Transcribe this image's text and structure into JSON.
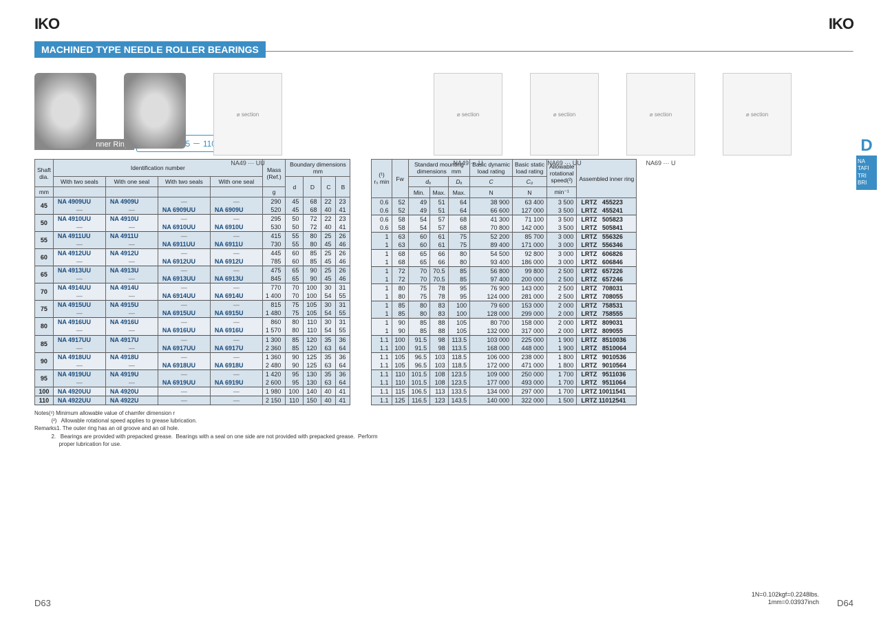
{
  "brand": "IKO",
  "title": "MACHINED TYPE NEEDLE ROLLER BEARINGS",
  "subtitle": "With Seal, With Inner Ring",
  "shaft_range": "Shaft dia. 45 － 110mm",
  "diagram_captions": [
    "NA49 ··· UU",
    "NA49 ··· U",
    "NA69 ··· UU",
    "NA69 ··· U"
  ],
  "side_tab": {
    "letter": "D",
    "items": "NA\nTAFI\nTRI\nBRI"
  },
  "left_head": {
    "shaft": "Shaft\ndia.",
    "ident": "Identification number",
    "sub": [
      "With two seals",
      "With one seal",
      "With two seals",
      "With one seal"
    ],
    "mass": "Mass\n(Ref.)",
    "bdim": "Boundary dimensions\nmm",
    "mm": "mm",
    "g": "g",
    "dims": [
      "d",
      "D",
      "C",
      "B"
    ]
  },
  "right_head": {
    "rsmin": "(¹)\nrₛ min",
    "fw": "Fw",
    "std": "Standard mounting\ndimensions   mm",
    "da": "dₐ",
    "Da": "Dₐ",
    "min": "Min.",
    "max": "Max.",
    "max2": "Max.",
    "bdr": "Basic dynamic\nload rating",
    "bsr": "Basic static\nload rating",
    "C": "C",
    "C0": "C₀",
    "N": "N",
    "allow": "Allowable\nrotational\nspeed(²)",
    "min1": "min⁻¹",
    "ring": "Assembled inner ring"
  },
  "rows": [
    {
      "shaft": "45",
      "a": [
        "NA 4909UU",
        "NA 4909U",
        "—",
        "—"
      ],
      "b": [
        "—",
        "—",
        "NA 6909UU",
        "NA 6909U"
      ],
      "la": [
        "290",
        "45",
        "68",
        "22",
        "23"
      ],
      "lb": [
        "520",
        "45",
        "68",
        "40",
        "41"
      ],
      "ra": [
        "0.6",
        "52",
        "49",
        "51",
        "64",
        "38 900",
        "63 400",
        "3 500",
        "LRTZ",
        "455223"
      ],
      "rb": [
        "0.6",
        "52",
        "49",
        "51",
        "64",
        "66 600",
        "127 000",
        "3 500",
        "LRTZ",
        "455241"
      ]
    },
    {
      "shaft": "50",
      "a": [
        "NA 4910UU",
        "NA 4910U",
        "—",
        "—"
      ],
      "b": [
        "—",
        "—",
        "NA 6910UU",
        "NA 6910U"
      ],
      "la": [
        "295",
        "50",
        "72",
        "22",
        "23"
      ],
      "lb": [
        "530",
        "50",
        "72",
        "40",
        "41"
      ],
      "ra": [
        "0.6",
        "58",
        "54",
        "57",
        "68",
        "41 300",
        "71 100",
        "3 500",
        "LRTZ",
        "505823"
      ],
      "rb": [
        "0.6",
        "58",
        "54",
        "57",
        "68",
        "70 800",
        "142 000",
        "3 500",
        "LRTZ",
        "505841"
      ]
    },
    {
      "shaft": "55",
      "a": [
        "NA 4911UU",
        "NA 4911U",
        "—",
        "—"
      ],
      "b": [
        "—",
        "—",
        "NA 6911UU",
        "NA 6911U"
      ],
      "la": [
        "415",
        "55",
        "80",
        "25",
        "26"
      ],
      "lb": [
        "730",
        "55",
        "80",
        "45",
        "46"
      ],
      "ra": [
        "1",
        "63",
        "60",
        "61",
        "75",
        "52 200",
        "85 700",
        "3 000",
        "LRTZ",
        "556326"
      ],
      "rb": [
        "1",
        "63",
        "60",
        "61",
        "75",
        "89 400",
        "171 000",
        "3 000",
        "LRTZ",
        "556346"
      ]
    },
    {
      "shaft": "60",
      "a": [
        "NA 4912UU",
        "NA 4912U",
        "—",
        "—"
      ],
      "b": [
        "—",
        "—",
        "NA 6912UU",
        "NA 6912U"
      ],
      "la": [
        "445",
        "60",
        "85",
        "25",
        "26"
      ],
      "lb": [
        "785",
        "60",
        "85",
        "45",
        "46"
      ],
      "ra": [
        "1",
        "68",
        "65",
        "66",
        "80",
        "54 500",
        "92 800",
        "3 000",
        "LRTZ",
        "606826"
      ],
      "rb": [
        "1",
        "68",
        "65",
        "66",
        "80",
        "93 400",
        "186 000",
        "3 000",
        "LRTZ",
        "606846"
      ]
    },
    {
      "shaft": "65",
      "a": [
        "NA 4913UU",
        "NA 4913U",
        "—",
        "—"
      ],
      "b": [
        "—",
        "—",
        "NA 6913UU",
        "NA 6913U"
      ],
      "la": [
        "475",
        "65",
        "90",
        "25",
        "26"
      ],
      "lb": [
        "845",
        "65",
        "90",
        "45",
        "46"
      ],
      "ra": [
        "1",
        "72",
        "70",
        "70.5",
        "85",
        "56 800",
        "99 800",
        "2 500",
        "LRTZ",
        "657226"
      ],
      "rb": [
        "1",
        "72",
        "70",
        "70.5",
        "85",
        "97 400",
        "200 000",
        "2 500",
        "LRTZ",
        "657246"
      ]
    },
    {
      "shaft": "70",
      "a": [
        "NA 4914UU",
        "NA 4914U",
        "—",
        "—"
      ],
      "b": [
        "—",
        "—",
        "NA 6914UU",
        "NA 6914U"
      ],
      "la": [
        "770",
        "70",
        "100",
        "30",
        "31"
      ],
      "lb": [
        "1 400",
        "70",
        "100",
        "54",
        "55"
      ],
      "ra": [
        "1",
        "80",
        "75",
        "78",
        "95",
        "76 900",
        "143 000",
        "2 500",
        "LRTZ",
        "708031"
      ],
      "rb": [
        "1",
        "80",
        "75",
        "78",
        "95",
        "124 000",
        "281 000",
        "2 500",
        "LRTZ",
        "708055"
      ]
    },
    {
      "shaft": "75",
      "a": [
        "NA 4915UU",
        "NA 4915U",
        "—",
        "—"
      ],
      "b": [
        "—",
        "—",
        "NA 6915UU",
        "NA 6915U"
      ],
      "la": [
        "815",
        "75",
        "105",
        "30",
        "31"
      ],
      "lb": [
        "1 480",
        "75",
        "105",
        "54",
        "55"
      ],
      "ra": [
        "1",
        "85",
        "80",
        "83",
        "100",
        "79 600",
        "153 000",
        "2 000",
        "LRTZ",
        "758531"
      ],
      "rb": [
        "1",
        "85",
        "80",
        "83",
        "100",
        "128 000",
        "299 000",
        "2 000",
        "LRTZ",
        "758555"
      ]
    },
    {
      "shaft": "80",
      "a": [
        "NA 4916UU",
        "NA 4916U",
        "—",
        "—"
      ],
      "b": [
        "—",
        "—",
        "NA 6916UU",
        "NA 6916U"
      ],
      "la": [
        "860",
        "80",
        "110",
        "30",
        "31"
      ],
      "lb": [
        "1 570",
        "80",
        "110",
        "54",
        "55"
      ],
      "ra": [
        "1",
        "90",
        "85",
        "88",
        "105",
        "80 700",
        "158 000",
        "2 000",
        "LRTZ",
        "809031"
      ],
      "rb": [
        "1",
        "90",
        "85",
        "88",
        "105",
        "132 000",
        "317 000",
        "2 000",
        "LRTZ",
        "809055"
      ]
    },
    {
      "shaft": "85",
      "a": [
        "NA 4917UU",
        "NA 4917U",
        "—",
        "—"
      ],
      "b": [
        "—",
        "—",
        "NA 6917UU",
        "NA 6917U"
      ],
      "la": [
        "1 300",
        "85",
        "120",
        "35",
        "36"
      ],
      "lb": [
        "2 360",
        "85",
        "120",
        "63",
        "64"
      ],
      "ra": [
        "1.1",
        "100",
        "91.5",
        "98",
        "113.5",
        "103 000",
        "225 000",
        "1 900",
        "LRTZ",
        "8510036"
      ],
      "rb": [
        "1.1",
        "100",
        "91.5",
        "98",
        "113.5",
        "168 000",
        "448 000",
        "1 900",
        "LRTZ",
        "8510064"
      ]
    },
    {
      "shaft": "90",
      "a": [
        "NA 4918UU",
        "NA 4918U",
        "—",
        "—"
      ],
      "b": [
        "—",
        "—",
        "NA 6918UU",
        "NA 6918U"
      ],
      "la": [
        "1 360",
        "90",
        "125",
        "35",
        "36"
      ],
      "lb": [
        "2 480",
        "90",
        "125",
        "63",
        "64"
      ],
      "ra": [
        "1.1",
        "105",
        "96.5",
        "103",
        "118.5",
        "106 000",
        "238 000",
        "1 800",
        "LRTZ",
        "9010536"
      ],
      "rb": [
        "1.1",
        "105",
        "96.5",
        "103",
        "118.5",
        "172 000",
        "471 000",
        "1 800",
        "LRTZ",
        "9010564"
      ]
    },
    {
      "shaft": "95",
      "a": [
        "NA 4919UU",
        "NA 4919U",
        "—",
        "—"
      ],
      "b": [
        "—",
        "—",
        "NA 6919UU",
        "NA 6919U"
      ],
      "la": [
        "1 420",
        "95",
        "130",
        "35",
        "36"
      ],
      "lb": [
        "2 600",
        "95",
        "130",
        "63",
        "64"
      ],
      "ra": [
        "1.1",
        "110",
        "101.5",
        "108",
        "123.5",
        "109 000",
        "250 000",
        "1 700",
        "LRTZ",
        "9511036"
      ],
      "rb": [
        "1.1",
        "110",
        "101.5",
        "108",
        "123.5",
        "177 000",
        "493 000",
        "1 700",
        "LRTZ",
        "9511064"
      ]
    },
    {
      "shaft": "100",
      "a": [
        "NA 4920UU",
        "NA 4920U",
        "—",
        "—"
      ],
      "b": null,
      "la": [
        "1 980",
        "100",
        "140",
        "40",
        "41"
      ],
      "lb": null,
      "ra": [
        "1.1",
        "115",
        "106.5",
        "113",
        "133.5",
        "134 000",
        "297 000",
        "1 700",
        "LRTZ 10011541",
        ""
      ],
      "rb": null
    },
    {
      "shaft": "110",
      "a": [
        "NA 4922UU",
        "NA 4922U",
        "—",
        "—"
      ],
      "b": null,
      "la": [
        "2 150",
        "110",
        "150",
        "40",
        "41"
      ],
      "lb": null,
      "ra": [
        "1.1",
        "125",
        "116.5",
        "123",
        "143.5",
        "140 000",
        "322 000",
        "1 500",
        "LRTZ 11012541",
        ""
      ],
      "rb": null
    }
  ],
  "notes": {
    "n1": "Notes(¹)   Minimum allowable value of chamfer dimension r",
    "n2": "           (²)   Allowable rotational speed applies to grease lubrication.",
    "r1": "Remarks1.  The outer ring has an oil groove and an oil hole.",
    "r2": "           2.   Bearings are provided with prepacked grease.  Bearings with a seal on one side are not provided with prepacked grease.  Perform",
    "r3": "                proper lubrication for use."
  },
  "page_left": "D63",
  "page_right": "D64",
  "conv1": "1N=0.102kgf=0.2248lbs.",
  "conv2": "1mm=0.03937inch"
}
